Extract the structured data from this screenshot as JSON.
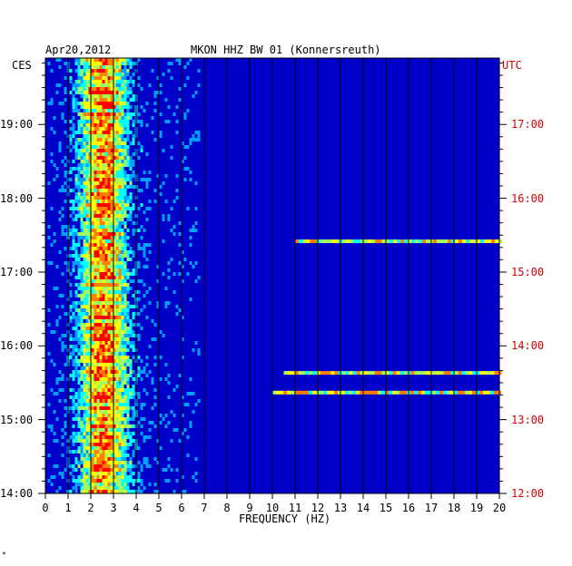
{
  "header": {
    "date": "Apr20,2012",
    "station": "MKON HHZ BW 01 (Konnersreuth)"
  },
  "chart_data": {
    "type": "heatmap",
    "title": "MKON HHZ BW 01 (Konnersreuth)",
    "date": "Apr20,2012",
    "xlabel": "FREQUENCY (HZ)",
    "xlim": [
      0,
      20
    ],
    "x_ticks": [
      "0",
      "1",
      "2",
      "3",
      "4",
      "5",
      "6",
      "7",
      "8",
      "9",
      "10",
      "11",
      "12",
      "13",
      "14",
      "15",
      "16",
      "17",
      "18",
      "19",
      "20"
    ],
    "left_axis_label": "CES",
    "left_y_ticks": [
      "19:00",
      "18:00",
      "17:00",
      "16:00",
      "15:00",
      "14:00"
    ],
    "right_axis_label": "UTC",
    "right_y_ticks": [
      "17:00",
      "16:00",
      "15:00",
      "14:00",
      "13:00",
      "12:00"
    ],
    "left_ylim_hours": [
      14,
      19.9
    ],
    "grid": true,
    "colormap": [
      "#000080",
      "#0000ff",
      "#00a0ff",
      "#00ffff",
      "#a0ff60",
      "#ffff00",
      "#ff8000",
      "#ff0000"
    ],
    "background_color": "#0000c8",
    "energy_band_hz": [
      0.5,
      5
    ],
    "peak_band_hz": [
      2,
      3
    ],
    "narrow_lines": [
      {
        "time_ces": "15:38",
        "from_hz": 10.5,
        "to_hz": 20
      },
      {
        "time_ces": "15:22",
        "from_hz": 10,
        "to_hz": 20
      },
      {
        "time_ces": "17:25",
        "from_hz": 11,
        "to_hz": 20
      }
    ]
  },
  "footer": {
    "mark": "*"
  }
}
